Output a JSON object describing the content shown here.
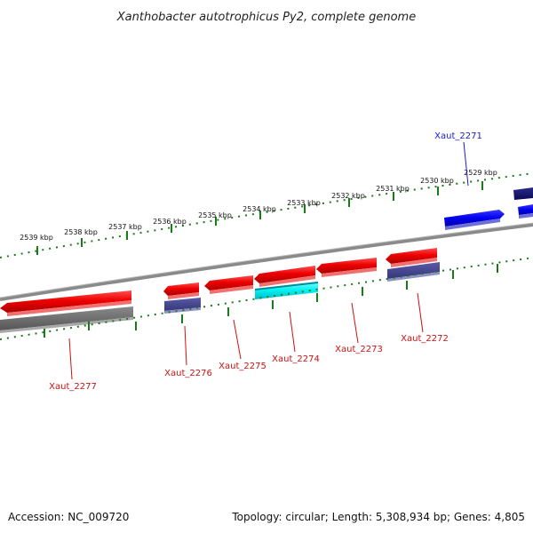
{
  "title": "Xanthobacter autotrophicus Py2, complete genome",
  "footer": {
    "accession": "Accession: NC_009720",
    "summary": "Topology: circular; Length: 5,308,934 bp; Genes: 4,805"
  },
  "colors": {
    "forward_label": "#1a1acc",
    "reverse_label": "#cc1111",
    "ruler": "#1a7a1a",
    "backbone": "#808080"
  },
  "ruler_labels": [
    "2539 kbp",
    "2538 kbp",
    "2537 kbp",
    "2536 kbp",
    "2535 kbp",
    "2534 kbp",
    "2533 kbp",
    "2532 kbp",
    "2531 kbp",
    "2530 kbp",
    "2529 kbp"
  ],
  "gene_labels": [
    {
      "text": "Xaut_2271",
      "strand": "forward"
    },
    {
      "text": "Xaut_2272",
      "strand": "reverse"
    },
    {
      "text": "Xaut_2273",
      "strand": "reverse"
    },
    {
      "text": "Xaut_2274",
      "strand": "reverse"
    },
    {
      "text": "Xaut_2275",
      "strand": "reverse"
    },
    {
      "text": "Xaut_2276",
      "strand": "reverse"
    },
    {
      "text": "Xaut_2277",
      "strand": "reverse"
    }
  ]
}
